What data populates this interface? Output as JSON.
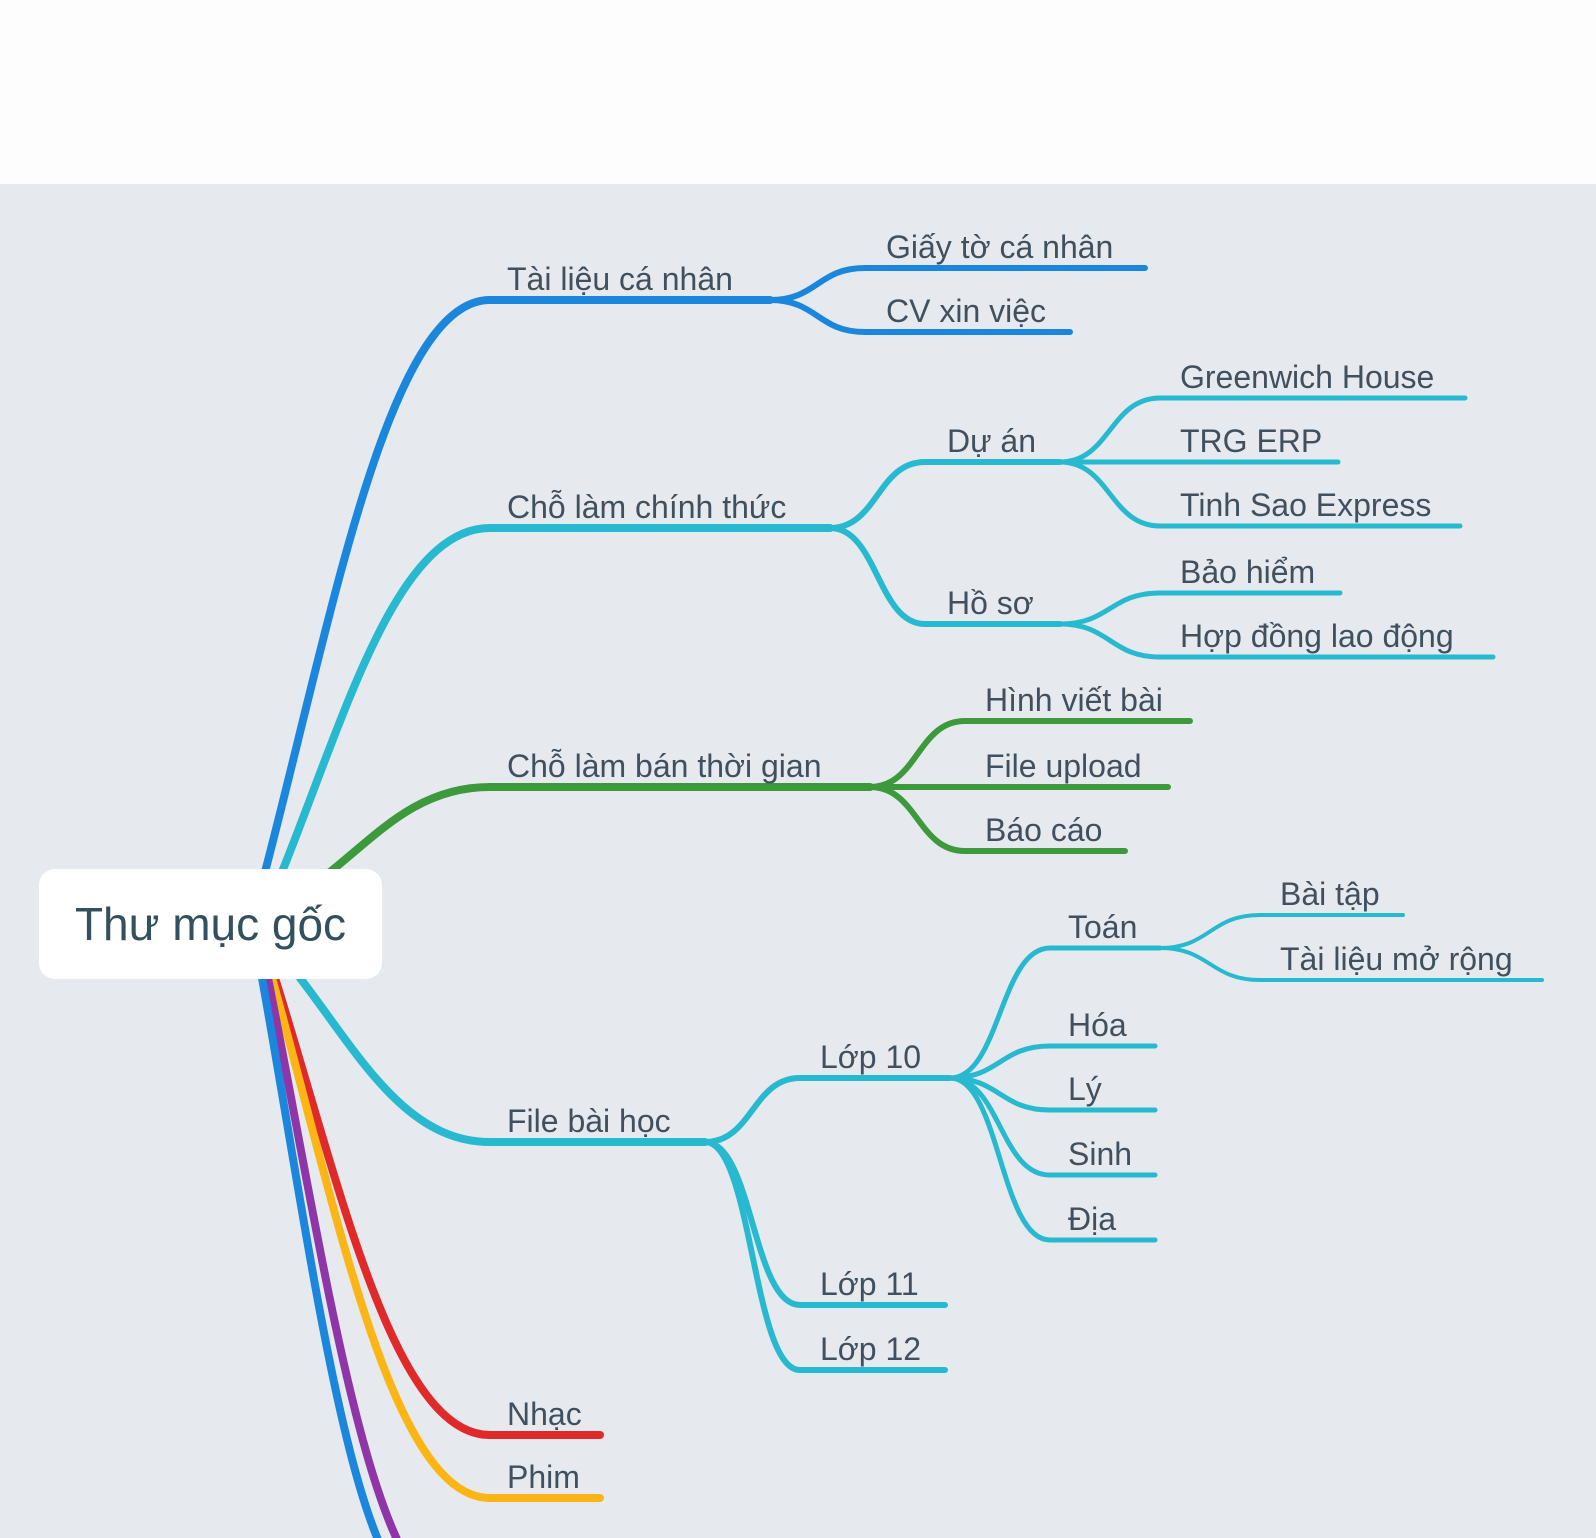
{
  "root": {
    "label": "Thư mục gốc"
  },
  "colors": {
    "blue": "#1a87dc",
    "cyan": "#27b9cf",
    "green": "#3c9a3c",
    "red": "#e02a2a",
    "yellow": "#fbb615",
    "purple": "#8e35a8",
    "text": "#40505e",
    "background": "#e6e9ee"
  },
  "nodes": [
    {
      "id": "tailieu",
      "parent": "root",
      "label": "Tài liệu cá nhân",
      "color": "#1a87dc"
    },
    {
      "id": "giayto",
      "parent": "tailieu",
      "label": "Giấy tờ cá nhân",
      "color": "#1a87dc"
    },
    {
      "id": "cv",
      "parent": "tailieu",
      "label": "CV xin việc",
      "color": "#1a87dc"
    },
    {
      "id": "chinhthuc",
      "parent": "root",
      "label": "Chỗ làm chính thức",
      "color": "#27b9cf"
    },
    {
      "id": "duan",
      "parent": "chinhthuc",
      "label": "Dự án",
      "color": "#27b9cf"
    },
    {
      "id": "greenwich",
      "parent": "duan",
      "label": "Greenwich House",
      "color": "#27b9cf"
    },
    {
      "id": "trg",
      "parent": "duan",
      "label": "TRG ERP",
      "color": "#27b9cf"
    },
    {
      "id": "tinhsao",
      "parent": "duan",
      "label": "Tinh Sao Express",
      "color": "#27b9cf"
    },
    {
      "id": "hoso",
      "parent": "chinhthuc",
      "label": "Hồ sơ",
      "color": "#27b9cf"
    },
    {
      "id": "baohiem",
      "parent": "hoso",
      "label": "Bảo hiểm",
      "color": "#27b9cf"
    },
    {
      "id": "hopdong",
      "parent": "hoso",
      "label": "Hợp đồng lao động",
      "color": "#27b9cf"
    },
    {
      "id": "banthoigian",
      "parent": "root",
      "label": "Chỗ làm bán thời gian",
      "color": "#3c9a3c"
    },
    {
      "id": "hinhviet",
      "parent": "banthoigian",
      "label": "Hình viết bài",
      "color": "#3c9a3c"
    },
    {
      "id": "fileupload",
      "parent": "banthoigian",
      "label": "File upload",
      "color": "#3c9a3c"
    },
    {
      "id": "baocao",
      "parent": "banthoigian",
      "label": "Báo cáo",
      "color": "#3c9a3c"
    },
    {
      "id": "filebaihoc",
      "parent": "root",
      "label": "File bài học",
      "color": "#27b9cf"
    },
    {
      "id": "lop10",
      "parent": "filebaihoc",
      "label": "Lớp 10",
      "color": "#27b9cf"
    },
    {
      "id": "toan",
      "parent": "lop10",
      "label": "Toán",
      "color": "#27b9cf"
    },
    {
      "id": "baitap",
      "parent": "toan",
      "label": "Bài tập",
      "color": "#27b9cf"
    },
    {
      "id": "morong",
      "parent": "toan",
      "label": "Tài liệu mở rộng",
      "color": "#27b9cf"
    },
    {
      "id": "hoa",
      "parent": "lop10",
      "label": "Hóa",
      "color": "#27b9cf"
    },
    {
      "id": "ly",
      "parent": "lop10",
      "label": "Lý",
      "color": "#27b9cf"
    },
    {
      "id": "sinh",
      "parent": "lop10",
      "label": "Sinh",
      "color": "#27b9cf"
    },
    {
      "id": "dia",
      "parent": "lop10",
      "label": "Địa",
      "color": "#27b9cf"
    },
    {
      "id": "lop11",
      "parent": "filebaihoc",
      "label": "Lớp 11",
      "color": "#27b9cf"
    },
    {
      "id": "lop12",
      "parent": "filebaihoc",
      "label": "Lớp 12",
      "color": "#27b9cf"
    },
    {
      "id": "nhac",
      "parent": "root",
      "label": "Nhạc",
      "color": "#e02a2a"
    },
    {
      "id": "phim",
      "parent": "root",
      "label": "Phim",
      "color": "#fbb615"
    },
    {
      "id": "offscreen1",
      "parent": "root",
      "label": "",
      "color": "#8e35a8"
    },
    {
      "id": "offscreen2",
      "parent": "root",
      "label": "",
      "color": "#1a87dc"
    }
  ]
}
